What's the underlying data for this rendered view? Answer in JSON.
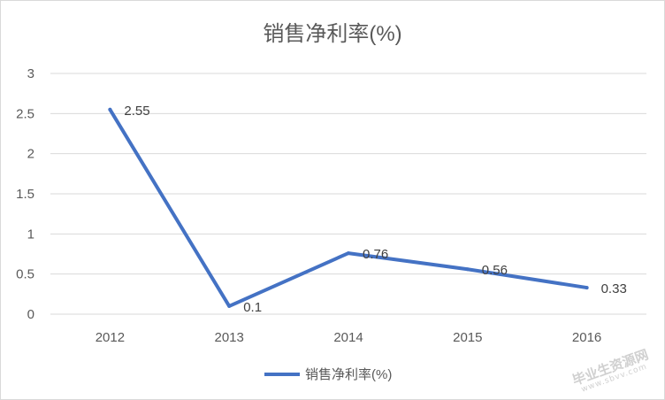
{
  "chart_data": {
    "type": "line",
    "title": "销售净利率(%)",
    "xlabel": "",
    "ylabel": "",
    "categories": [
      "2012",
      "2013",
      "2014",
      "2015",
      "2016"
    ],
    "series": [
      {
        "name": "销售净利率(%)",
        "values": [
          2.55,
          0.1,
          0.76,
          0.56,
          0.33
        ]
      }
    ],
    "data_labels": [
      "2.55",
      "0.1",
      "0.76",
      "0.56",
      "0.33"
    ],
    "ylim": [
      0,
      3
    ],
    "yticks": [
      0,
      0.5,
      1,
      1.5,
      2,
      2.5,
      3
    ],
    "ytick_labels": [
      "0",
      "0.5",
      "1",
      "1.5",
      "2",
      "2.5",
      "3"
    ],
    "grid": true,
    "legend_position": "bottom",
    "colors": {
      "series": "#4472C4",
      "grid": "#d9d9d9",
      "text": "#595959",
      "title": "#595959"
    }
  },
  "watermark": {
    "text": "毕业生资源网",
    "url": "www.sbvv.com"
  }
}
